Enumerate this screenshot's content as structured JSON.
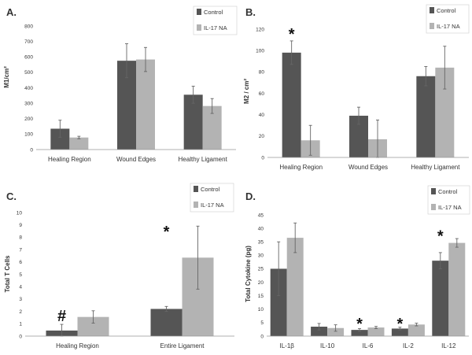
{
  "colors": {
    "control": "#555555",
    "il17na": "#b3b3b3",
    "axis": "#999999",
    "error": "#666666"
  },
  "chart_data": [
    {
      "type": "bar",
      "panel": "A.",
      "ylabel": "M1/cm²",
      "ylim": [
        0,
        800
      ],
      "yticks": [
        0,
        100,
        200,
        300,
        400,
        500,
        600,
        700,
        800
      ],
      "categories": [
        "Healing Region",
        "Wound Edges",
        "Healthy Ligament"
      ],
      "series": [
        {
          "name": "Control",
          "values": [
            135,
            575,
            355
          ],
          "errors": [
            55,
            110,
            55
          ]
        },
        {
          "name": "IL-17 NA",
          "values": [
            78,
            583,
            282
          ],
          "errors": [
            8,
            78,
            48
          ]
        }
      ],
      "annotations": []
    },
    {
      "type": "bar",
      "panel": "B.",
      "ylabel": "M2 / cm²",
      "ylim": [
        0,
        120
      ],
      "yticks": [
        0,
        20,
        40,
        60,
        80,
        100,
        120
      ],
      "categories": [
        "Healing Region",
        "Wound Edges",
        "Healthy Ligament"
      ],
      "series": [
        {
          "name": "Control",
          "values": [
            98,
            39,
            76
          ],
          "errors": [
            11,
            8,
            9
          ]
        },
        {
          "name": "IL-17 NA",
          "values": [
            16,
            17,
            84
          ],
          "errors": [
            14,
            18,
            20
          ]
        }
      ],
      "annotations": [
        {
          "category": 0,
          "text": "*",
          "value": 120
        }
      ]
    },
    {
      "type": "bar",
      "panel": "C.",
      "ylabel": "Total T Cells",
      "ylim": [
        0,
        10
      ],
      "yticks": [
        0,
        1,
        2,
        3,
        4,
        5,
        6,
        7,
        8,
        9,
        10
      ],
      "categories": [
        "Healing Region",
        "Entire Ligament"
      ],
      "series": [
        {
          "name": "Control",
          "values": [
            0.45,
            2.2
          ],
          "errors": [
            0.5,
            0.2
          ]
        },
        {
          "name": "IL-17 NA",
          "values": [
            1.55,
            6.35
          ],
          "errors": [
            0.5,
            2.55
          ]
        }
      ],
      "annotations": [
        {
          "category": 0,
          "text": "#",
          "value": 1.35
        },
        {
          "category": 1,
          "text": "*",
          "value": 8.85
        }
      ]
    },
    {
      "type": "bar",
      "panel": "D.",
      "ylabel": "Total Cytokine (pg)",
      "ylim": [
        0,
        45
      ],
      "yticks": [
        0,
        5,
        10,
        15,
        20,
        25,
        30,
        35,
        40,
        45
      ],
      "categories": [
        "IL-1β",
        "IL-10",
        "IL-6",
        "IL-2",
        "IL-12"
      ],
      "series": [
        {
          "name": "Control",
          "values": [
            25,
            3.5,
            2.3,
            2.8,
            28
          ],
          "errors": [
            10,
            1.2,
            0.5,
            0.5,
            3
          ]
        },
        {
          "name": "IL-17 NA",
          "values": [
            36.5,
            3,
            3.2,
            4.3,
            34.6
          ],
          "errors": [
            5.5,
            1.2,
            0.4,
            0.5,
            1.6
          ]
        }
      ],
      "annotations": [
        {
          "category": 2,
          "text": "*",
          "value": 6.5
        },
        {
          "category": 3,
          "text": "*",
          "value": 6.5
        },
        {
          "category": 4,
          "text": "*",
          "value": 39
        }
      ]
    }
  ]
}
